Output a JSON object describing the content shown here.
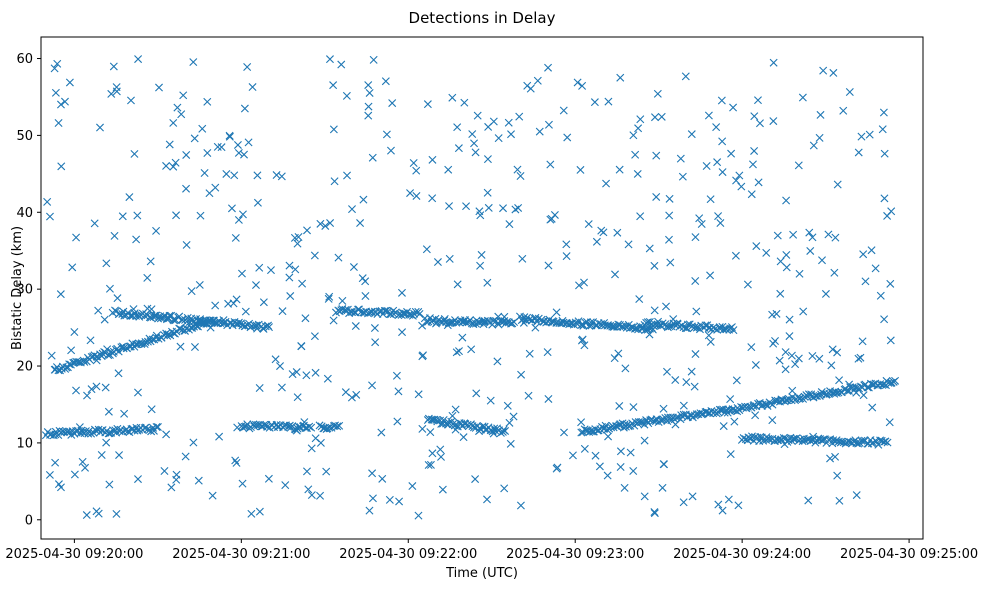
{
  "chart_data": {
    "type": "scatter",
    "title": "Detections in Delay",
    "xlabel": "Time (UTC)",
    "ylabel": "Bistatic Delay (km)",
    "marker": "x",
    "color": "#1f77b4",
    "xlim": [
      "2025-04-30 09:19:48",
      "2025-04-30 09:25:05"
    ],
    "ylim": [
      -2.5,
      62.8
    ],
    "x_ticks": [
      "2025-04-30 09:20:00",
      "2025-04-30 09:21:00",
      "2025-04-30 09:22:00",
      "2025-04-30 09:23:00",
      "2025-04-30 09:24:00",
      "2025-04-30 09:25:00"
    ],
    "y_ticks": [
      "0",
      "10",
      "20",
      "30",
      "40",
      "50",
      "60"
    ],
    "grid": false,
    "legend": "none",
    "series": [
      {
        "tracks": [
          {
            "description": "rising track",
            "start": [
              "2025-04-30 09:19:53",
              19.5
            ],
            "end": [
              "2025-04-30 09:20:50",
              26.0
            ]
          },
          {
            "description": "flat track",
            "start": [
              "2025-04-30 09:20:14",
              27.0
            ],
            "end": [
              "2025-04-30 09:21:10",
              25.0
            ]
          },
          {
            "description": "flat track",
            "start": [
              "2025-04-30 09:21:34",
              27.2
            ],
            "end": [
              "2025-04-30 09:22:04",
              26.8
            ]
          },
          {
            "description": "flat track",
            "start": [
              "2025-04-30 09:22:06",
              26.0
            ],
            "end": [
              "2025-04-30 09:22:38",
              25.5
            ]
          },
          {
            "description": "flat track",
            "start": [
              "2025-04-30 09:22:40",
              26.2
            ],
            "end": [
              "2025-04-30 09:23:28",
              24.8
            ]
          },
          {
            "description": "flat track",
            "start": [
              "2025-04-30 09:23:25",
              25.5
            ],
            "end": [
              "2025-04-30 09:23:57",
              24.8
            ]
          },
          {
            "description": "lower track",
            "start": [
              "2025-04-30 09:19:50",
              11.2
            ],
            "end": [
              "2025-04-30 09:20:30",
              11.8
            ]
          },
          {
            "description": "lower track",
            "start": [
              "2025-04-30 09:21:00",
              12.2
            ],
            "end": [
              "2025-04-30 09:21:25",
              12.0
            ]
          },
          {
            "description": "lower track",
            "start": [
              "2025-04-30 09:21:28",
              12.0
            ],
            "end": [
              "2025-04-30 09:21:35",
              12.1
            ]
          },
          {
            "description": "falling track",
            "start": [
              "2025-04-30 09:22:07",
              13.0
            ],
            "end": [
              "2025-04-30 09:22:35",
              11.5
            ]
          },
          {
            "description": "curve",
            "start": [
              "2025-04-30 09:23:02",
              11.5
            ],
            "end": [
              "2025-04-30 09:23:55",
              14.2
            ]
          },
          {
            "description": "rising tail",
            "start": [
              "2025-04-30 09:23:55",
              14.2
            ],
            "end": [
              "2025-04-30 09:24:55",
              18.0
            ]
          },
          {
            "description": "lower flat tail",
            "start": [
              "2025-04-30 09:24:00",
              10.6
            ],
            "end": [
              "2025-04-30 09:24:52",
              10.0
            ]
          }
        ]
      }
    ]
  }
}
